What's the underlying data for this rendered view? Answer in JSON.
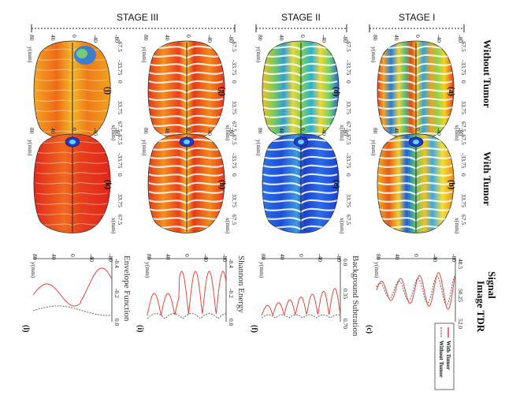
{
  "stages": {
    "stage1": "STAGE I",
    "stage2": "STAGE II",
    "stage3": "STAGE III"
  },
  "columns": {
    "without": "Without Tumor",
    "with": "With Tumor",
    "signal_top": "Signal",
    "signal_bottom": "Image TDR"
  },
  "brain_axes": {
    "y_label": "y(mm)",
    "x_label": "x(mm)",
    "y_ticks": [
      "80",
      "40",
      "0",
      "-40",
      "-80"
    ],
    "x_ticks": [
      "-67.5",
      "-33.75",
      "0",
      "33.75",
      "67.5"
    ]
  },
  "panels": {
    "a": "(a)",
    "b": "(b)",
    "c": "(c)",
    "d": "(d)",
    "e": "(e)",
    "f": "(f)",
    "g": "(g)",
    "h": "(h)",
    "i": "(i)",
    "j": "(j)",
    "k": "(k)",
    "l": "(l)"
  },
  "signal_plots": {
    "c": {
      "title": "",
      "ticks": [
        "48.5",
        "50.25",
        "52.0"
      ]
    },
    "f": {
      "title": "Background Subtration",
      "ticks": [
        "0.0",
        "0.35",
        "0.70"
      ]
    },
    "i": {
      "title": "Shannon Energy",
      "ticks": [
        "-0.4",
        "-0.2",
        "0.0"
      ]
    },
    "l": {
      "title": "Envelope Function",
      "ticks": [
        "-0.4",
        "-0.2",
        "0.0"
      ]
    },
    "y_label": "y(mm)",
    "y_ticks": [
      "80",
      "40",
      "0",
      "-40",
      "-80"
    ]
  },
  "legend": {
    "with": "With Tumor",
    "without": "Without Tumor"
  },
  "colors": {
    "with_tumor": "#e8463c",
    "without_tumor": "#555555"
  },
  "chart_data": {
    "type": "line",
    "series": [
      {
        "name": "With Tumor",
        "panel": "c"
      },
      {
        "name": "Without Tumor",
        "panel": "c"
      }
    ]
  }
}
